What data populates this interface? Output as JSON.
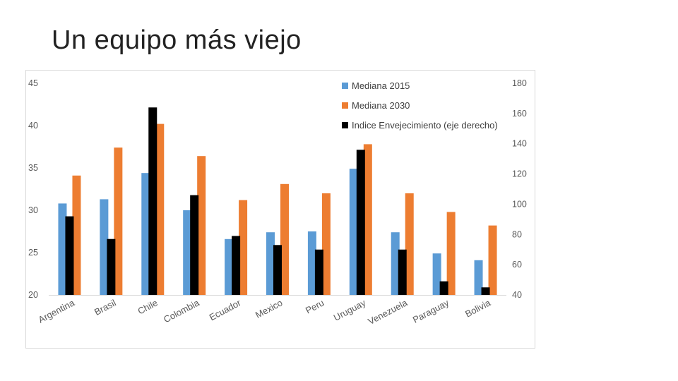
{
  "slide": {
    "title": "Un equipo más viejo"
  },
  "chart_data": {
    "type": "bar",
    "title": "",
    "categories": [
      "Argentina",
      "Brasil",
      "Chile",
      "Colombia",
      "Ecuador",
      "Mexico",
      "Peru",
      "Uruguay",
      "Venezuela",
      "Paraguay",
      "Bolivia"
    ],
    "series": [
      {
        "name": "Mediana 2015",
        "axis": "left",
        "color": "#5b9bd5",
        "values": [
          30.8,
          31.3,
          34.4,
          30.0,
          26.6,
          27.4,
          27.5,
          34.9,
          27.4,
          24.9,
          24.1
        ]
      },
      {
        "name": "Mediana 2030",
        "axis": "left",
        "color": "#ed7d31",
        "values": [
          34.1,
          37.4,
          40.2,
          36.4,
          31.2,
          33.1,
          32.0,
          37.8,
          32.0,
          29.8,
          28.2
        ]
      },
      {
        "name": "Indice Envejecimiento (eje derecho)",
        "axis": "right",
        "color": "#000000",
        "values": [
          92,
          77,
          164,
          106,
          79,
          73,
          70,
          136,
          70,
          49,
          45
        ]
      }
    ],
    "y_left": {
      "min": 20,
      "max": 45,
      "ticks": [
        "20",
        "25",
        "30",
        "35",
        "40",
        "45"
      ]
    },
    "y_right": {
      "min": 40,
      "max": 180,
      "ticks": [
        "40",
        "60",
        "80",
        "100",
        "120",
        "140",
        "160",
        "180"
      ]
    },
    "legend_position": "top-right",
    "grid": false
  }
}
